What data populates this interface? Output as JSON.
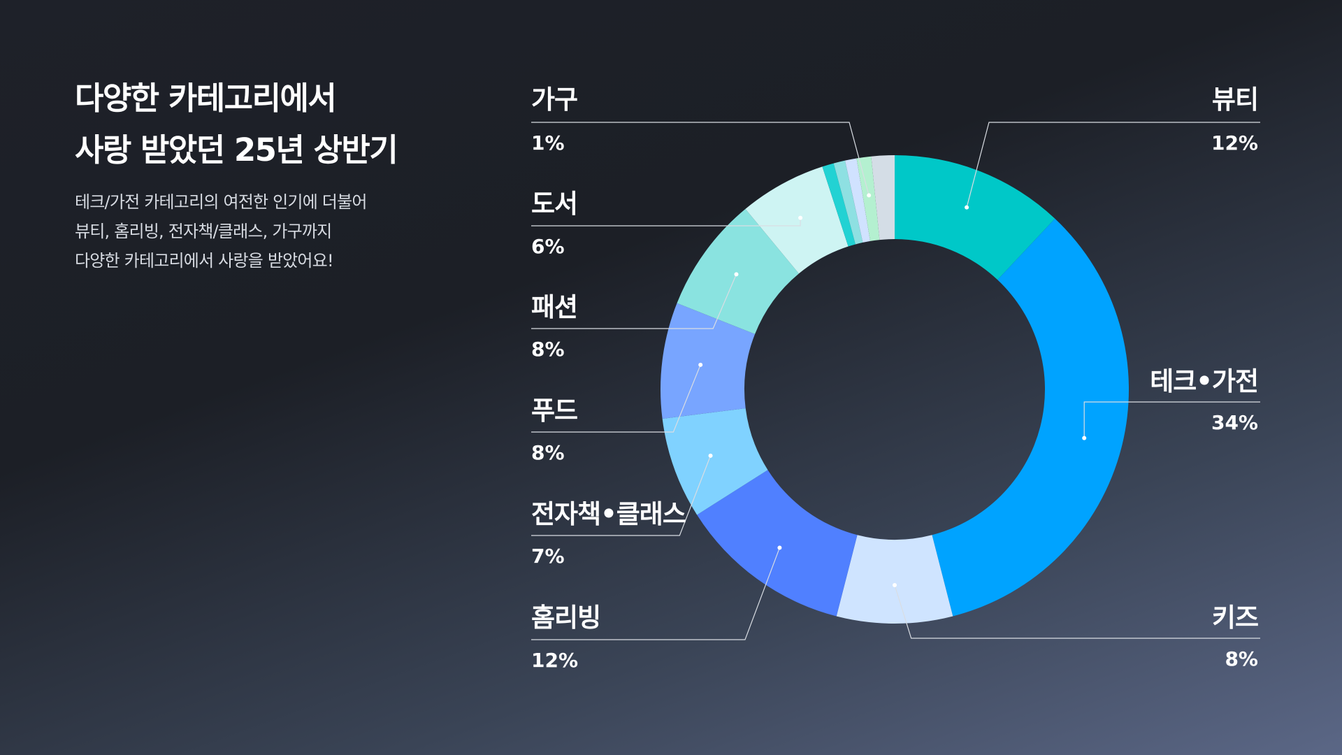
{
  "header": {
    "title_line1": "다양한 카테고리에서",
    "title_line2": "사랑 받았던 25년 상반기",
    "desc_line1": "테크/가전 카테고리의 여전한 인기에 더불어",
    "desc_line2": "뷰티, 홈리빙, 전자책/클래스, 가구까지",
    "desc_line3": "다양한 카테고리에서 사랑을 받았어요!"
  },
  "chart_data": {
    "type": "pie",
    "style": "donut",
    "slices": [
      {
        "label": "뷰티",
        "percent_label": "12%",
        "value": 12,
        "color": "#00c8c8"
      },
      {
        "label": "테크•가전",
        "percent_label": "34%",
        "value": 34,
        "color": "#00a3ff"
      },
      {
        "label": "키즈",
        "percent_label": "8%",
        "value": 8,
        "color": "#cfe4ff"
      },
      {
        "label": "홈리빙",
        "percent_label": "12%",
        "value": 12,
        "color": "#5080ff"
      },
      {
        "label": "전자책•클래스",
        "percent_label": "7%",
        "value": 7,
        "color": "#80d2ff"
      },
      {
        "label": "푸드",
        "percent_label": "8%",
        "value": 8,
        "color": "#78a5ff"
      },
      {
        "label": "패션",
        "percent_label": "8%",
        "value": 8,
        "color": "#8ae3e0"
      },
      {
        "label": "도서",
        "percent_label": "6%",
        "value": 6,
        "color": "#cef4f3"
      },
      {
        "label": "",
        "percent_label": "",
        "value": 0.8,
        "color": "#22d2d3"
      },
      {
        "label": "",
        "percent_label": "",
        "value": 0.8,
        "color": "#8ee0e2"
      },
      {
        "label": "",
        "percent_label": "",
        "value": 0.8,
        "color": "#d0e2ff"
      },
      {
        "label": "가구",
        "percent_label": "1%",
        "value": 1,
        "color": "#b4f0d0"
      },
      {
        "label": "",
        "percent_label": "",
        "value": 1.6,
        "color": "#d4dde6"
      }
    ]
  }
}
